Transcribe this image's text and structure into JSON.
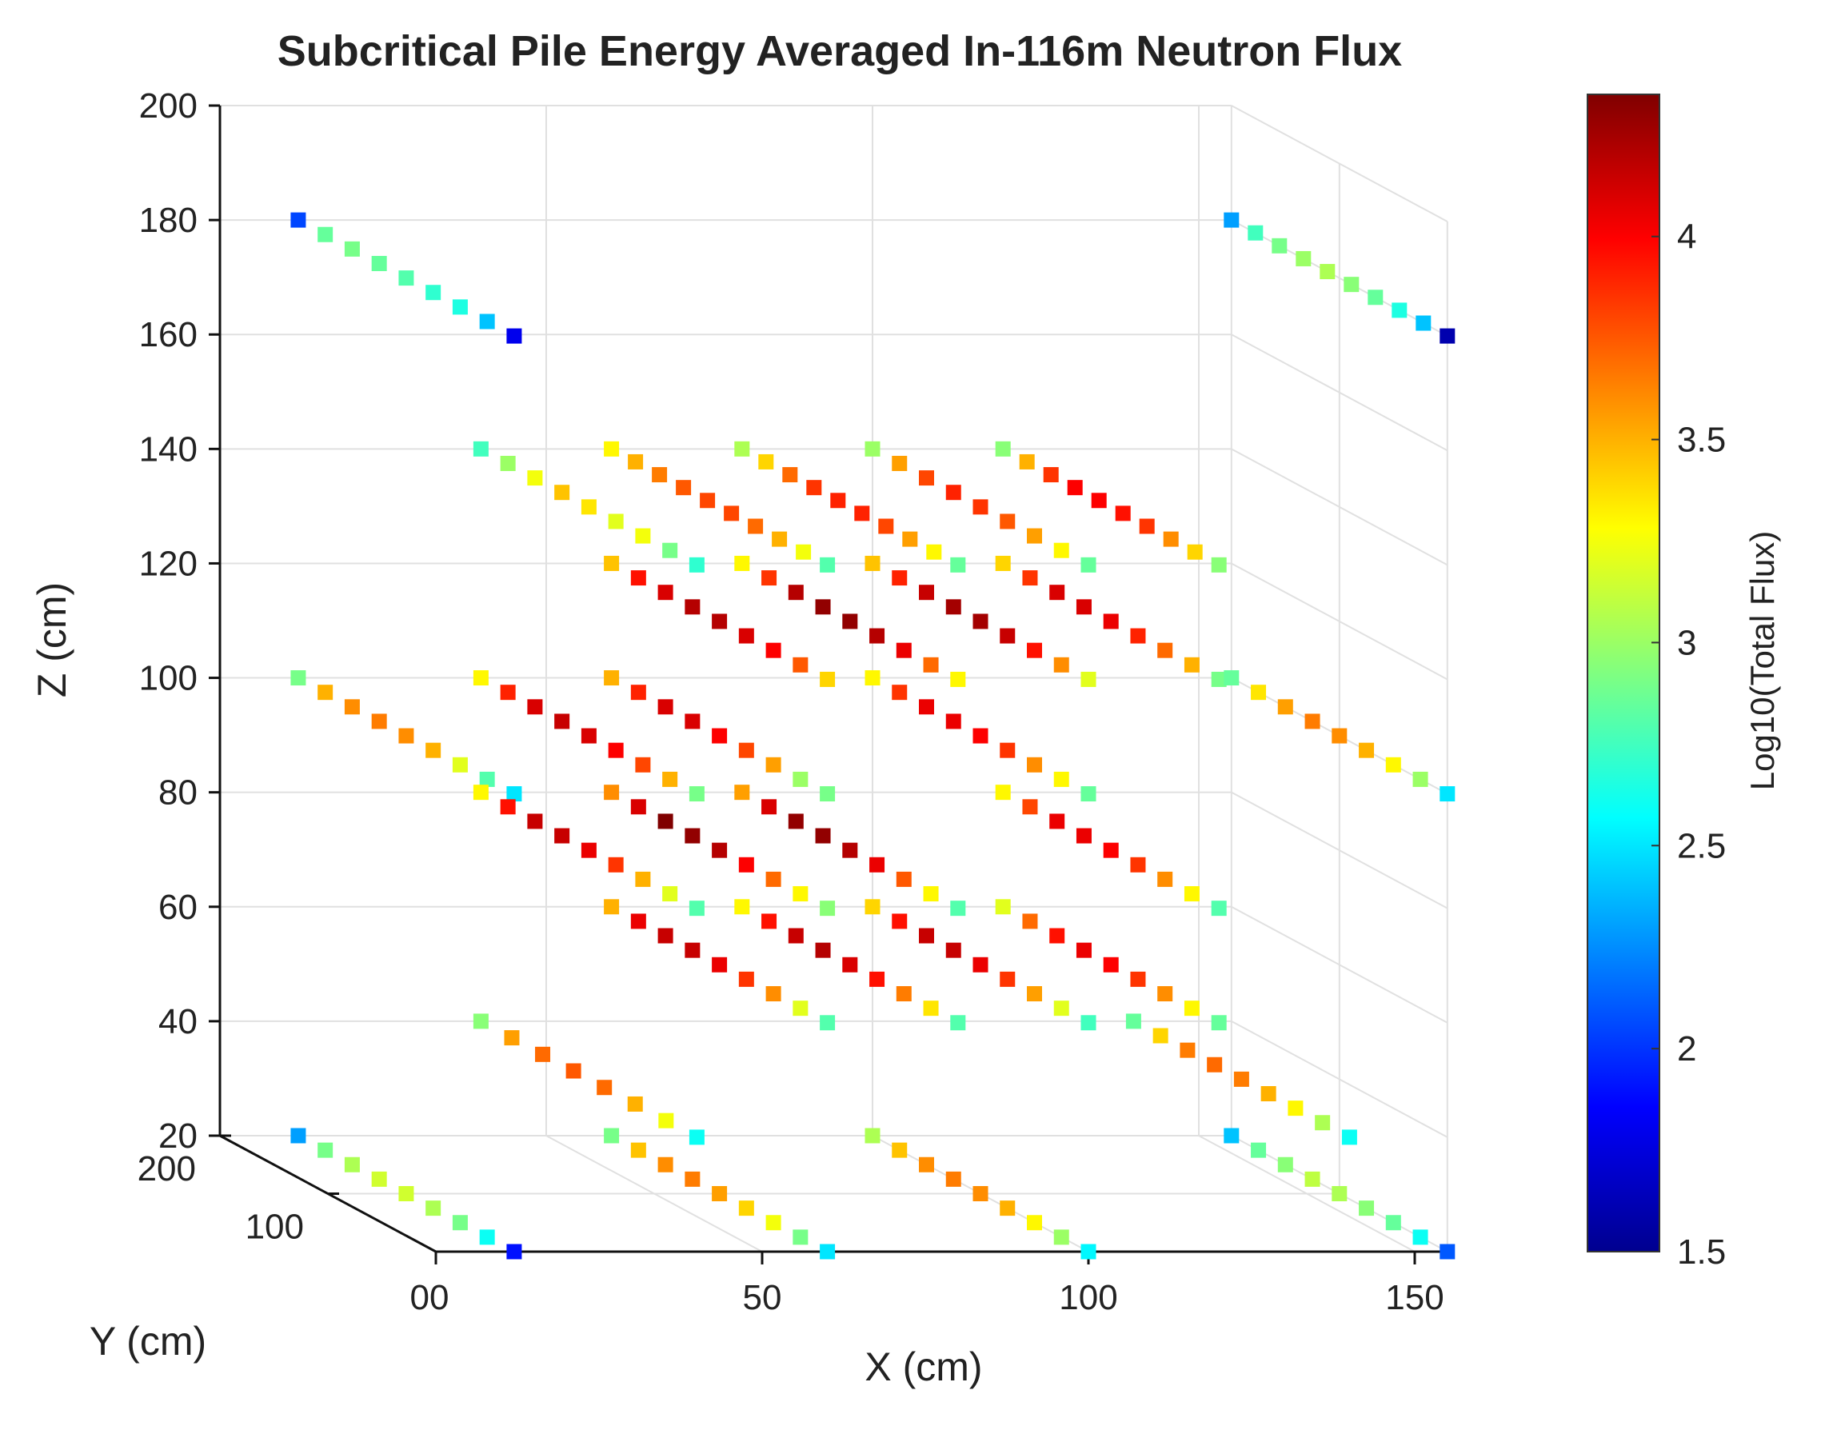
{
  "chart_data": {
    "type": "scatter3d",
    "title": "Subcritical Pile Energy Averaged In-116m Neutron Flux",
    "xlabel": "X (cm)",
    "ylabel": "Y (cm)",
    "zlabel": "Z (cm)",
    "colorbar_label": "Log10(Total Flux)",
    "xlim": [
      0,
      155
    ],
    "ylim": [
      0,
      200
    ],
    "zlim": [
      20,
      200
    ],
    "clim": [
      1.5,
      4.35
    ],
    "x_ticks": [
      "0",
      "50",
      "100",
      "150"
    ],
    "x_origin_tick": "00",
    "y_ticks": [
      "100",
      "200"
    ],
    "z_ticks": [
      "20",
      "40",
      "60",
      "80",
      "100",
      "120",
      "140",
      "160",
      "180",
      "200"
    ],
    "colorbar_ticks": [
      "1.5",
      "2",
      "2.5",
      "3",
      "3.5",
      "4"
    ],
    "colormap": [
      "#00008f",
      "#0000ff",
      "#0080ff",
      "#00ffff",
      "#80ff80",
      "#ffff00",
      "#ff8000",
      "#ff0000",
      "#800000"
    ],
    "series": [
      {
        "x": 12,
        "z": 180,
        "values": [
          2.05,
          2.85,
          2.9,
          2.85,
          2.8,
          2.7,
          2.65,
          2.4,
          1.8
        ]
      },
      {
        "x": 155,
        "z": 180,
        "values": [
          2.3,
          2.75,
          2.9,
          3.0,
          3.05,
          2.95,
          2.85,
          2.65,
          2.4,
          1.6
        ]
      },
      {
        "x": 40,
        "z": 140,
        "values": [
          2.75,
          3.0,
          3.25,
          3.45,
          3.35,
          3.2,
          3.25,
          2.9,
          2.7
        ]
      },
      {
        "x": 60,
        "z": 140,
        "values": [
          3.3,
          3.5,
          3.65,
          3.75,
          3.8,
          3.8,
          3.7,
          3.5,
          3.25,
          2.8
        ]
      },
      {
        "x": 80,
        "z": 140,
        "values": [
          3.05,
          3.4,
          3.7,
          3.85,
          3.9,
          3.9,
          3.8,
          3.55,
          3.3,
          2.85
        ]
      },
      {
        "x": 100,
        "z": 140,
        "values": [
          3.0,
          3.55,
          3.8,
          3.9,
          3.85,
          3.75,
          3.55,
          3.3,
          2.85
        ]
      },
      {
        "x": 120,
        "z": 140,
        "values": [
          2.95,
          3.5,
          3.85,
          4.0,
          4.0,
          3.95,
          3.85,
          3.6,
          3.4,
          2.95
        ]
      },
      {
        "x": 60,
        "z": 120,
        "values": [
          3.45,
          3.95,
          4.1,
          4.2,
          4.2,
          4.1,
          4.0,
          3.75,
          3.4
        ]
      },
      {
        "x": 80,
        "z": 120,
        "values": [
          3.3,
          3.85,
          4.2,
          4.3,
          4.3,
          4.2,
          4.05,
          3.7,
          3.3
        ]
      },
      {
        "x": 100,
        "z": 120,
        "values": [
          3.45,
          3.9,
          4.15,
          4.25,
          4.25,
          4.15,
          3.95,
          3.6,
          3.2
        ]
      },
      {
        "x": 120,
        "z": 120,
        "values": [
          3.4,
          3.85,
          4.1,
          4.1,
          4.05,
          3.9,
          3.7,
          3.5,
          2.9
        ]
      },
      {
        "x": 12,
        "z": 100,
        "values": [
          2.9,
          3.5,
          3.6,
          3.65,
          3.6,
          3.5,
          3.2,
          2.8,
          2.5
        ]
      },
      {
        "x": 40,
        "z": 100,
        "values": [
          3.3,
          3.9,
          4.1,
          4.15,
          4.1,
          4.0,
          3.8,
          3.5,
          2.9
        ]
      },
      {
        "x": 60,
        "z": 100,
        "values": [
          3.5,
          3.9,
          4.1,
          4.1,
          4.0,
          3.8,
          3.55,
          3.0,
          2.9
        ]
      },
      {
        "x": 100,
        "z": 100,
        "values": [
          3.3,
          3.85,
          4.05,
          4.05,
          4.0,
          3.85,
          3.6,
          3.3,
          2.85
        ]
      },
      {
        "x": 155,
        "z": 100,
        "values": [
          2.85,
          3.35,
          3.55,
          3.65,
          3.6,
          3.5,
          3.3,
          3.0,
          2.5
        ]
      },
      {
        "x": 40,
        "z": 80,
        "values": [
          3.3,
          3.95,
          4.15,
          4.15,
          4.05,
          3.85,
          3.5,
          3.2,
          2.8
        ]
      },
      {
        "x": 60,
        "z": 80,
        "values": [
          3.6,
          4.1,
          4.35,
          4.3,
          4.2,
          4.0,
          3.7,
          3.3,
          2.95
        ]
      },
      {
        "x": 80,
        "z": 80,
        "values": [
          3.55,
          4.1,
          4.3,
          4.3,
          4.2,
          4.05,
          3.75,
          3.3,
          2.8
        ]
      },
      {
        "x": 120,
        "z": 80,
        "values": [
          3.3,
          3.8,
          4.05,
          4.05,
          4.0,
          3.85,
          3.6,
          3.3,
          2.8
        ]
      },
      {
        "x": 60,
        "z": 60,
        "values": [
          3.5,
          4.05,
          4.15,
          4.15,
          4.05,
          3.85,
          3.6,
          3.2,
          2.8
        ]
      },
      {
        "x": 80,
        "z": 60,
        "values": [
          3.3,
          3.95,
          4.15,
          4.2,
          4.1,
          3.95,
          3.65,
          3.35,
          2.8
        ]
      },
      {
        "x": 100,
        "z": 60,
        "values": [
          3.4,
          3.95,
          4.15,
          4.15,
          4.05,
          3.85,
          3.55,
          3.2,
          2.75
        ]
      },
      {
        "x": 120,
        "z": 60,
        "values": [
          3.2,
          3.7,
          3.95,
          4.05,
          4.0,
          3.85,
          3.6,
          3.3,
          2.85
        ]
      },
      {
        "x": 40,
        "z": 40,
        "values": [
          2.95,
          3.55,
          3.7,
          3.75,
          3.7,
          3.5,
          3.25,
          2.6
        ]
      },
      {
        "x": 140,
        "z": 40,
        "values": [
          2.85,
          3.4,
          3.65,
          3.7,
          3.65,
          3.5,
          3.3,
          3.05,
          2.6
        ]
      },
      {
        "x": 12,
        "z": 20,
        "values": [
          2.3,
          2.9,
          3.05,
          3.15,
          3.15,
          3.05,
          2.9,
          2.6,
          1.9
        ]
      },
      {
        "x": 60,
        "z": 20,
        "values": [
          2.9,
          3.45,
          3.6,
          3.65,
          3.55,
          3.4,
          3.25,
          2.9,
          2.5
        ]
      },
      {
        "x": 100,
        "z": 20,
        "values": [
          3.05,
          3.45,
          3.6,
          3.65,
          3.6,
          3.5,
          3.3,
          3.0,
          2.55
        ]
      },
      {
        "x": 155,
        "z": 20,
        "values": [
          2.4,
          2.85,
          2.95,
          3.1,
          3.05,
          2.95,
          2.85,
          2.6,
          2.1
        ]
      }
    ]
  }
}
